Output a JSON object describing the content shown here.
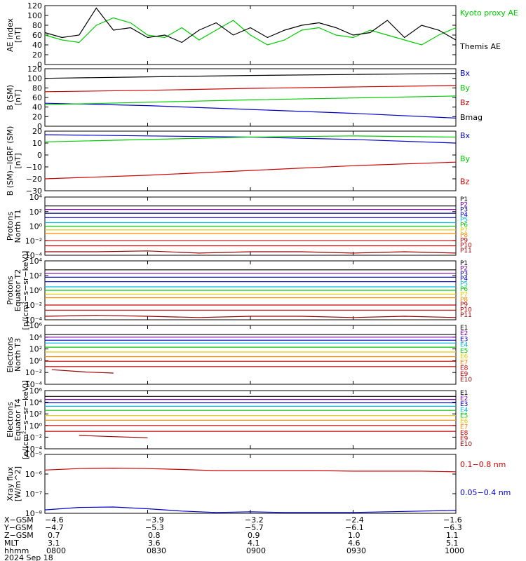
{
  "colors": {
    "black": "#000000",
    "green": "#00cc00",
    "blue": "#0000cc",
    "red": "#cc0000",
    "purple": "#7a00a8",
    "cyan": "#00bbdd",
    "yellow": "#e6c800",
    "orange": "#ff8800",
    "darkred": "#990000",
    "navy": "#000088"
  },
  "chart_data": [
    {
      "type": "line",
      "ylabel": [
        "AE index",
        "[nT]"
      ],
      "ylim": [
        0,
        120
      ],
      "yticks": [
        "0",
        "20",
        "40",
        "60",
        "80",
        "100",
        "120"
      ],
      "grid": false,
      "legend_placement": "right",
      "series": [
        {
          "name": "Kyoto proxy AE",
          "color": "#00cc00",
          "x": [
            0,
            5,
            10,
            15,
            20,
            25,
            30,
            35,
            40,
            45,
            50,
            55,
            60,
            65,
            70,
            75,
            80,
            85,
            90,
            95,
            100,
            105,
            110,
            115,
            120
          ],
          "y": [
            60,
            50,
            45,
            80,
            95,
            85,
            60,
            55,
            75,
            50,
            70,
            90,
            60,
            40,
            50,
            70,
            75,
            60,
            55,
            70,
            60,
            50,
            40,
            60,
            75
          ]
        },
        {
          "name": "Themis AE",
          "color": "#000000",
          "x": [
            0,
            5,
            10,
            15,
            20,
            25,
            30,
            35,
            40,
            45,
            50,
            55,
            60,
            65,
            70,
            75,
            80,
            85,
            90,
            95,
            100,
            105,
            110,
            115,
            120
          ],
          "y": [
            65,
            55,
            60,
            115,
            70,
            75,
            55,
            60,
            45,
            70,
            85,
            60,
            75,
            55,
            70,
            80,
            85,
            75,
            60,
            65,
            90,
            55,
            80,
            70,
            50
          ]
        }
      ]
    },
    {
      "type": "line",
      "ylabel": [
        "B (SM)",
        "[nT]"
      ],
      "ylim": [
        0,
        120
      ],
      "yticks": [
        "0",
        "20",
        "40",
        "60",
        "80",
        "100",
        "120"
      ],
      "grid": false,
      "legend_placement": "right",
      "series": [
        {
          "name": "Bx",
          "color": "#0000cc",
          "x": [
            0,
            30,
            60,
            90,
            120
          ],
          "y": [
            48,
            43,
            35,
            27,
            17
          ]
        },
        {
          "name": "By",
          "color": "#00cc00",
          "x": [
            0,
            30,
            60,
            90,
            120
          ],
          "y": [
            45,
            50,
            55,
            59,
            63
          ]
        },
        {
          "name": "Bz",
          "color": "#cc0000",
          "x": [
            0,
            30,
            60,
            90,
            120
          ],
          "y": [
            72,
            75,
            79,
            82,
            85
          ]
        },
        {
          "name": "Bmag",
          "color": "#000000",
          "x": [
            0,
            30,
            60,
            90,
            120
          ],
          "y": [
            100,
            103,
            106,
            108,
            110
          ]
        }
      ]
    },
    {
      "type": "line",
      "ylabel": [
        "B (SM)−IGRF (SM)",
        "[nT]"
      ],
      "ylim": [
        -30,
        20
      ],
      "yticks": [
        "−30",
        "−20",
        "−10",
        "0",
        "10",
        "20"
      ],
      "grid": false,
      "legend_placement": "right",
      "series": [
        {
          "name": "Bx",
          "color": "#0000cc",
          "x": [
            0,
            30,
            60,
            90,
            120
          ],
          "y": [
            17,
            16,
            15,
            13,
            10
          ]
        },
        {
          "name": "By",
          "color": "#00cc00",
          "x": [
            0,
            30,
            60,
            90,
            120
          ],
          "y": [
            11,
            13,
            15,
            16,
            15
          ]
        },
        {
          "name": "Bz",
          "color": "#cc0000",
          "x": [
            0,
            30,
            60,
            90,
            120
          ],
          "y": [
            -20,
            -17,
            -13,
            -9,
            -6
          ]
        }
      ]
    },
    {
      "type": "line",
      "ylabel": [
        "Protons",
        "North T1"
      ],
      "ylog": true,
      "ylim": [
        0.0001,
        10000
      ],
      "yticks": [
        "10⁻⁴",
        "10⁻²",
        "10⁰",
        "10²",
        "10⁴"
      ],
      "grid": false,
      "legend_placement": "right",
      "series": [
        {
          "name": "P1",
          "color": "#000000",
          "x": [
            0,
            120
          ],
          "y": [
            600,
            600
          ]
        },
        {
          "name": "P2",
          "color": "#7a00a8",
          "x": [
            0,
            120
          ],
          "y": [
            200,
            200
          ]
        },
        {
          "name": "P3",
          "color": "#000088",
          "x": [
            0,
            120
          ],
          "y": [
            60,
            60
          ]
        },
        {
          "name": "P4",
          "color": "#0000cc",
          "x": [
            0,
            120
          ],
          "y": [
            15,
            15
          ]
        },
        {
          "name": "P5",
          "color": "#00bbdd",
          "x": [
            0,
            120
          ],
          "y": [
            3,
            3
          ]
        },
        {
          "name": "P6",
          "color": "#00cc00",
          "x": [
            0,
            120
          ],
          "y": [
            1,
            1
          ]
        },
        {
          "name": "P7",
          "color": "#e6c800",
          "x": [
            0,
            120
          ],
          "y": [
            0.3,
            0.3
          ]
        },
        {
          "name": "P8",
          "color": "#ff8800",
          "x": [
            0,
            120
          ],
          "y": [
            0.1,
            0.1
          ]
        },
        {
          "name": "P9",
          "color": "#cc0000",
          "x": [
            0,
            120
          ],
          "y": [
            0.01,
            0.01
          ]
        },
        {
          "name": "P10",
          "color": "#cc0000",
          "x": [
            0,
            120
          ],
          "y": [
            0.002,
            0.002
          ]
        },
        {
          "name": "P11",
          "color": "#990000",
          "x": [
            0,
            15,
            30,
            45,
            60,
            75,
            90,
            105,
            120
          ],
          "y": [
            0.0003,
            0.0003,
            0.0004,
            0.0002,
            0.0003,
            0.0003,
            0.0002,
            0.0003,
            0.0002
          ]
        }
      ]
    },
    {
      "type": "line",
      "ylabel": [
        "Protons",
        "Equator T2",
        "[p/(cm²−s−sr−keV)]"
      ],
      "ylog": true,
      "ylim": [
        0.0001,
        10000
      ],
      "yticks": [
        "10⁻⁴",
        "10⁻²",
        "10⁰",
        "10²",
        "10⁴"
      ],
      "grid": false,
      "legend_placement": "right",
      "series": [
        {
          "name": "P1",
          "color": "#000000",
          "x": [
            0,
            120
          ],
          "y": [
            600,
            600
          ]
        },
        {
          "name": "P2",
          "color": "#7a00a8",
          "x": [
            0,
            120
          ],
          "y": [
            200,
            200
          ]
        },
        {
          "name": "P3",
          "color": "#000088",
          "x": [
            0,
            120
          ],
          "y": [
            60,
            60
          ]
        },
        {
          "name": "P4",
          "color": "#0000cc",
          "x": [
            0,
            120
          ],
          "y": [
            15,
            15
          ]
        },
        {
          "name": "P5",
          "color": "#00bbdd",
          "x": [
            0,
            120
          ],
          "y": [
            3,
            3
          ]
        },
        {
          "name": "P6",
          "color": "#00cc00",
          "x": [
            0,
            120
          ],
          "y": [
            1,
            1
          ]
        },
        {
          "name": "P7",
          "color": "#e6c800",
          "x": [
            0,
            120
          ],
          "y": [
            0.3,
            0.3
          ]
        },
        {
          "name": "P8",
          "color": "#ff8800",
          "x": [
            0,
            120
          ],
          "y": [
            0.1,
            0.1
          ]
        },
        {
          "name": "P9",
          "color": "#cc0000",
          "x": [
            0,
            120
          ],
          "y": [
            0.01,
            0.01
          ]
        },
        {
          "name": "P10",
          "color": "#cc0000",
          "x": [
            0,
            120
          ],
          "y": [
            0.002,
            0.002
          ]
        },
        {
          "name": "P11",
          "color": "#990000",
          "x": [
            0,
            15,
            30,
            45,
            60,
            75,
            90,
            105,
            120
          ],
          "y": [
            0.0003,
            0.0004,
            0.0003,
            0.0002,
            0.0003,
            0.0003,
            0.0002,
            0.0003,
            0.0002
          ]
        }
      ]
    },
    {
      "type": "line",
      "ylabel": [
        "Electrons",
        "North T3"
      ],
      "ylog": true,
      "ylim": [
        0.0001,
        1000000
      ],
      "yticks": [
        "10⁻⁴",
        "10⁻²",
        "10⁰",
        "10²",
        "10⁴",
        "10⁶"
      ],
      "grid": false,
      "legend_placement": "right",
      "series": [
        {
          "name": "E1",
          "color": "#000000",
          "x": [
            0,
            120
          ],
          "y": [
            30000,
            30000
          ]
        },
        {
          "name": "E2",
          "color": "#7a00a8",
          "x": [
            0,
            120
          ],
          "y": [
            10000,
            10000
          ]
        },
        {
          "name": "E3",
          "color": "#0000cc",
          "x": [
            0,
            120
          ],
          "y": [
            3000,
            3000
          ]
        },
        {
          "name": "E4",
          "color": "#00bbdd",
          "x": [
            0,
            120
          ],
          "y": [
            1000,
            1000
          ]
        },
        {
          "name": "E5",
          "color": "#00cc00",
          "x": [
            0,
            120
          ],
          "y": [
            200,
            200
          ]
        },
        {
          "name": "E6",
          "color": "#e6c800",
          "x": [
            0,
            120
          ],
          "y": [
            30,
            30
          ]
        },
        {
          "name": "E7",
          "color": "#ff8800",
          "x": [
            0,
            120
          ],
          "y": [
            5,
            5
          ]
        },
        {
          "name": "E8",
          "color": "#cc0000",
          "x": [
            0,
            120
          ],
          "y": [
            0.8,
            0.8
          ]
        },
        {
          "name": "E9",
          "color": "#cc0000",
          "x": [
            0,
            120
          ],
          "y": [
            0.1,
            0.1
          ]
        },
        {
          "name": "E10",
          "color": "#990000",
          "x": [
            2,
            12,
            20
          ],
          "y": [
            0.03,
            0.012,
            0.008
          ]
        }
      ]
    },
    {
      "type": "line",
      "ylabel": [
        "Electrons",
        "Equator T4",
        "[e/(cm²−s−sr−keV)]"
      ],
      "ylog": true,
      "ylim": [
        0.0001,
        1000000
      ],
      "yticks": [
        "10⁻⁴",
        "10⁻²",
        "10⁰",
        "10²",
        "10⁴",
        "10⁶"
      ],
      "grid": false,
      "legend_placement": "right",
      "series": [
        {
          "name": "E1",
          "color": "#000000",
          "x": [
            0,
            120
          ],
          "y": [
            100000,
            100000
          ]
        },
        {
          "name": "E2",
          "color": "#7a00a8",
          "x": [
            0,
            120
          ],
          "y": [
            30000,
            30000
          ]
        },
        {
          "name": "E3",
          "color": "#0000cc",
          "x": [
            0,
            120
          ],
          "y": [
            8000,
            8000
          ]
        },
        {
          "name": "E4",
          "color": "#00bbdd",
          "x": [
            0,
            120
          ],
          "y": [
            2000,
            2000
          ]
        },
        {
          "name": "E5",
          "color": "#00cc00",
          "x": [
            0,
            120
          ],
          "y": [
            400,
            400
          ]
        },
        {
          "name": "E6",
          "color": "#e6c800",
          "x": [
            0,
            120
          ],
          "y": [
            50,
            50
          ]
        },
        {
          "name": "E7",
          "color": "#ff8800",
          "x": [
            0,
            120
          ],
          "y": [
            8,
            8
          ]
        },
        {
          "name": "E8",
          "color": "#cc0000",
          "x": [
            0,
            120
          ],
          "y": [
            1,
            1
          ]
        },
        {
          "name": "E9",
          "color": "#cc0000",
          "x": [
            0,
            120
          ],
          "y": [
            0.1,
            0.1
          ]
        },
        {
          "name": "E10",
          "color": "#990000",
          "x": [
            10,
            20,
            30
          ],
          "y": [
            0.02,
            0.012,
            0.008
          ]
        }
      ]
    },
    {
      "type": "line",
      "ylabel": [
        "Xray flux",
        "[W/m^2]"
      ],
      "ylog": true,
      "ylim": [
        1e-08,
        1e-05
      ],
      "yticks": [
        "10⁻⁸",
        "10⁻⁷",
        "10⁻⁶",
        "10⁻⁵"
      ],
      "grid": false,
      "legend_placement": "right",
      "series": [
        {
          "name": "0.1−0.8 nm",
          "color": "#cc0000",
          "x": [
            0,
            10,
            20,
            30,
            40,
            50,
            60,
            70,
            80,
            90,
            100,
            110,
            120
          ],
          "y": [
            1.6e-06,
            1.9e-06,
            2e-06,
            1.9e-06,
            1.7e-06,
            1.5e-06,
            1.5e-06,
            1.5e-06,
            1.5e-06,
            1.4e-06,
            1.4e-06,
            1.4e-06,
            1.3e-06
          ]
        },
        {
          "name": "0.05−0.4 nm",
          "color": "#0000cc",
          "x": [
            0,
            10,
            20,
            30,
            40,
            50,
            60,
            70,
            80,
            90,
            100,
            110,
            120
          ],
          "y": [
            1.5e-08,
            2e-08,
            2.1e-08,
            1.7e-08,
            1.3e-08,
            1.1e-08,
            1.2e-08,
            1.1e-08,
            1.1e-08,
            1.1e-08,
            1.2e-08,
            1.3e-08,
            1.4e-08
          ]
        }
      ]
    }
  ],
  "ephemeris": {
    "rows": [
      {
        "label": "X−GSM",
        "values": [
          "−4.6",
          "−3.9",
          "−3.2",
          "−2.4",
          "−1.6"
        ]
      },
      {
        "label": "Y−GSM",
        "values": [
          "−4.7",
          "−5.3",
          "−5.7",
          "−6.1",
          "−6.3"
        ]
      },
      {
        "label": "Z−GSM",
        "values": [
          "0.7",
          "0.8",
          "0.9",
          "1.0",
          "1.1"
        ]
      },
      {
        "label": "MLT",
        "values": [
          "3.1",
          "3.6",
          "4.1",
          "4.6",
          "5.1"
        ]
      },
      {
        "label": "hhmm",
        "values": [
          "0800",
          "0830",
          "0900",
          "0930",
          "1000"
        ]
      }
    ],
    "date": "2024 Sep 18"
  }
}
